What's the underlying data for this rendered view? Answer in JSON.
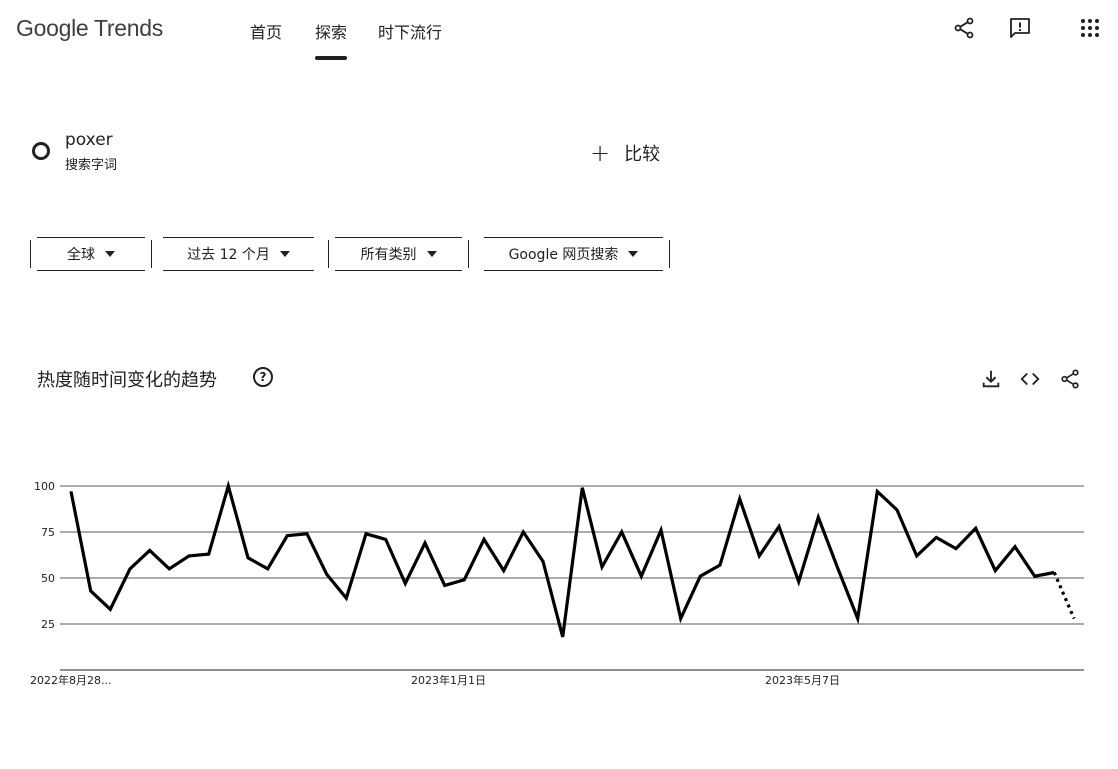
{
  "header": {
    "logo": "Google Trends",
    "tabs": [
      {
        "label": "首页",
        "active": false
      },
      {
        "label": "探索",
        "active": true
      },
      {
        "label": "时下流行",
        "active": false
      }
    ],
    "icons": [
      "share-icon",
      "feedback-icon",
      "apps-grid-icon"
    ]
  },
  "term": {
    "name": "poxer",
    "type": "搜索字词",
    "compare_label": "比较"
  },
  "filters": [
    {
      "label": "全球"
    },
    {
      "label": "过去 12 个月"
    },
    {
      "label": "所有类别"
    },
    {
      "label": "Google 网页搜索"
    }
  ],
  "section": {
    "title": "热度随时间变化的趋势",
    "help": "?",
    "icons": [
      "download-icon",
      "embed-icon",
      "share-icon"
    ]
  },
  "chart_data": {
    "type": "line",
    "y_ticks": [
      "100",
      "75",
      "50",
      "25"
    ],
    "ylim": [
      0,
      100
    ],
    "x_labels": [
      "2022年8月28...",
      "2023年1月1日",
      "2023年5月7日"
    ],
    "x_label_positions": [
      0,
      18,
      36
    ],
    "grid": true,
    "values": [
      97,
      43,
      33,
      55,
      65,
      55,
      62,
      63,
      100,
      61,
      55,
      73,
      74,
      52,
      39,
      74,
      71,
      47,
      69,
      46,
      49,
      71,
      54,
      75,
      59,
      18,
      99,
      56,
      75,
      51,
      76,
      28,
      51,
      57,
      93,
      62,
      78,
      48,
      83,
      55,
      28,
      97,
      87,
      62,
      72,
      66,
      77,
      54,
      67,
      51,
      53,
      28
    ],
    "partial_from_index": 50
  }
}
